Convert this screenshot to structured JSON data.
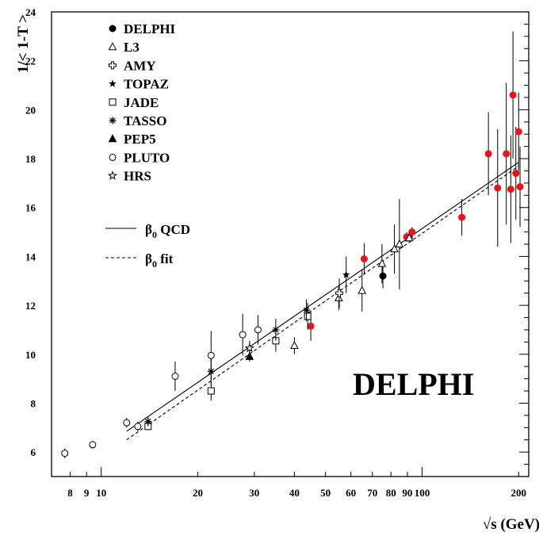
{
  "chart_data": {
    "type": "scatter",
    "title": "",
    "watermark_label": "DELPHI",
    "xlabel": "√s (GeV)",
    "ylabel": "1/< 1-T >",
    "xscale": "log",
    "xlim": [
      7,
      215
    ],
    "ylim": [
      5,
      24
    ],
    "x_ticks": [
      8,
      9,
      10,
      20,
      30,
      40,
      50,
      60,
      70,
      80,
      90,
      100,
      200
    ],
    "x_tick_labels": [
      "8",
      "9",
      "10",
      "20",
      "30",
      "40",
      "50",
      "60",
      "70",
      "80",
      "90",
      "100",
      "200"
    ],
    "y_ticks": [
      6,
      8,
      10,
      12,
      14,
      16,
      18,
      20,
      22,
      24
    ],
    "y_tick_labels": [
      "6",
      "8",
      "10",
      "12",
      "14",
      "16",
      "18",
      "20",
      "22",
      "24"
    ],
    "grid": false,
    "legend_position": "top-left",
    "series": [
      {
        "name": "DELPHI",
        "marker": "filled-circle",
        "color": "#000000",
        "points": [
          {
            "x": 91.2,
            "y": 14.8,
            "err": 0.1
          },
          {
            "x": 75.5,
            "y": 13.2,
            "err": 0.5
          }
        ]
      },
      {
        "name": "DELPHI",
        "marker": "filled-circle",
        "color": "#e8141a",
        "legend": false,
        "points": [
          {
            "x": 45,
            "y": 11.15,
            "err": 0.6
          },
          {
            "x": 66,
            "y": 13.9,
            "err": 0.65
          },
          {
            "x": 89.5,
            "y": 14.8,
            "err": 0.2
          },
          {
            "x": 91.2,
            "y": 14.75,
            "err": 0.1
          },
          {
            "x": 93,
            "y": 15.0,
            "err": 0.2
          },
          {
            "x": 133,
            "y": 15.6,
            "err": 0.75
          },
          {
            "x": 161,
            "y": 18.2,
            "err": 1.7
          },
          {
            "x": 172,
            "y": 16.8,
            "err": 2.4
          },
          {
            "x": 183,
            "y": 18.2,
            "err": 2.9
          },
          {
            "x": 189,
            "y": 16.75,
            "err": 2.2
          },
          {
            "x": 192,
            "y": 20.6,
            "err": 2.6
          },
          {
            "x": 196,
            "y": 17.4,
            "err": 1.9
          },
          {
            "x": 200,
            "y": 19.1,
            "err": 1.6
          },
          {
            "x": 202,
            "y": 16.85,
            "err": 1.65
          }
        ]
      },
      {
        "name": "L3",
        "marker": "open-triangle",
        "color": "#000000",
        "points": [
          {
            "x": 40,
            "y": 10.35,
            "err": 0.35
          },
          {
            "x": 55,
            "y": 12.3,
            "err": 0.5
          },
          {
            "x": 65,
            "y": 12.6,
            "err": 0.85
          },
          {
            "x": 75,
            "y": 13.7,
            "err": 0.8
          },
          {
            "x": 82,
            "y": 14.3,
            "err": 1.0
          },
          {
            "x": 85,
            "y": 14.5,
            "err": 1.85
          },
          {
            "x": 91.2,
            "y": 14.75,
            "err": 0.1
          }
        ]
      },
      {
        "name": "AMY",
        "marker": "open-cross",
        "color": "#000000",
        "points": [
          {
            "x": 55.2,
            "y": 12.5,
            "err": 0.6
          }
        ]
      },
      {
        "name": "TOPAZ",
        "marker": "filled-star",
        "color": "#000000",
        "points": [
          {
            "x": 58,
            "y": 13.25,
            "err": 0.75
          }
        ]
      },
      {
        "name": "JADE",
        "marker": "open-square",
        "color": "#000000",
        "points": [
          {
            "x": 14,
            "y": 7.05,
            "err": 0.15
          },
          {
            "x": 22,
            "y": 8.5,
            "err": 0.4
          },
          {
            "x": 35,
            "y": 10.55,
            "err": 0.45
          },
          {
            "x": 44,
            "y": 11.55,
            "err": 0.55
          }
        ]
      },
      {
        "name": "TASSO",
        "marker": "asterisk",
        "color": "#000000",
        "points": [
          {
            "x": 14,
            "y": 7.25,
            "err": 0.2
          },
          {
            "x": 22,
            "y": 9.3,
            "err": 0.6
          },
          {
            "x": 35,
            "y": 11.0,
            "err": 0.45
          },
          {
            "x": 43.6,
            "y": 11.8,
            "err": 0.45
          }
        ]
      },
      {
        "name": "PEP5",
        "marker": "filled-triangle",
        "color": "#000000",
        "points": [
          {
            "x": 29,
            "y": 9.9,
            "err": 0.2
          }
        ]
      },
      {
        "name": "PLUTO",
        "marker": "open-circle",
        "color": "#000000",
        "points": [
          {
            "x": 7.7,
            "y": 5.95,
            "err": 0.2
          },
          {
            "x": 9.4,
            "y": 6.3,
            "err": 0.15
          },
          {
            "x": 12,
            "y": 7.2,
            "err": 0.2
          },
          {
            "x": 13,
            "y": 7.05,
            "err": 0.2
          },
          {
            "x": 17,
            "y": 9.1,
            "err": 0.6
          },
          {
            "x": 22,
            "y": 9.95,
            "err": 1.0
          },
          {
            "x": 27.6,
            "y": 10.8,
            "err": 0.85
          },
          {
            "x": 30.8,
            "y": 11.0,
            "err": 0.6
          }
        ]
      },
      {
        "name": "HRS",
        "marker": "open-star",
        "color": "#000000",
        "points": [
          {
            "x": 29,
            "y": 10.25,
            "err": 0.3
          }
        ]
      }
    ],
    "curves": [
      {
        "name": "β0 QCD",
        "style": "solid",
        "points": [
          [
            12,
            6.85
          ],
          [
            200,
            17.85
          ]
        ]
      },
      {
        "name": "β0 fit",
        "style": "dashed",
        "points": [
          [
            12,
            6.5
          ],
          [
            200,
            17.7
          ]
        ]
      }
    ]
  }
}
